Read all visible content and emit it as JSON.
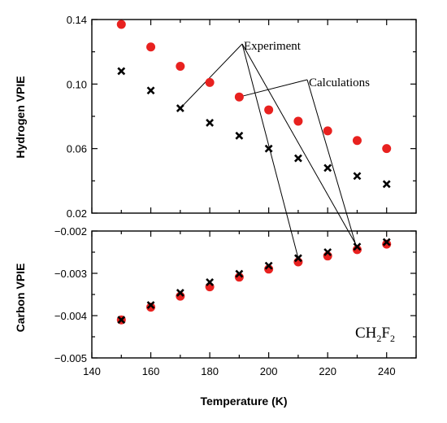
{
  "chart_data": [
    {
      "type": "scatter",
      "panel": "top",
      "ylabel": "Hydrogen VPIE",
      "ylim": [
        0.02,
        0.14
      ],
      "yticks": [
        0.02,
        0.06,
        0.1,
        0.14
      ],
      "ytick_labels": [
        "0.02",
        "0.06",
        "0.10",
        "0.14"
      ],
      "xlim": [
        140,
        250
      ],
      "series": [
        {
          "name": "Experiment",
          "marker": "x",
          "color": "#000000",
          "x": [
            150,
            160,
            170,
            180,
            190,
            200,
            210,
            220,
            230,
            240
          ],
          "y": [
            0.108,
            0.096,
            0.085,
            0.076,
            0.068,
            0.06,
            0.054,
            0.048,
            0.043,
            0.038
          ]
        },
        {
          "name": "Calculations",
          "marker": "circle",
          "color": "#e8211f",
          "x": [
            150,
            160,
            170,
            180,
            190,
            200,
            210,
            220,
            230,
            240
          ],
          "y": [
            0.137,
            0.123,
            0.111,
            0.101,
            0.092,
            0.084,
            0.077,
            0.071,
            0.065,
            0.06
          ]
        }
      ]
    },
    {
      "type": "scatter",
      "panel": "bottom",
      "ylabel": "Carbon VPIE",
      "xlabel": "Temperature (K)",
      "ylim": [
        -0.005,
        -0.002
      ],
      "yticks": [
        -0.005,
        -0.004,
        -0.003,
        -0.002
      ],
      "ytick_labels": [
        "−0.005",
        "−0.004",
        "−0.003",
        "−0.002"
      ],
      "xlim": [
        140,
        250
      ],
      "xticks": [
        140,
        160,
        180,
        200,
        220,
        240
      ],
      "xtick_labels": [
        "140",
        "160",
        "180",
        "200",
        "220",
        "240"
      ],
      "series": [
        {
          "name": "Experiment",
          "marker": "x",
          "color": "#000000",
          "x": [
            150,
            160,
            170,
            180,
            190,
            200,
            210,
            220,
            230,
            240
          ],
          "y": [
            -0.0041,
            -0.00375,
            -0.00346,
            -0.00321,
            -0.00301,
            -0.00282,
            -0.00264,
            -0.0025,
            -0.00237,
            -0.00226
          ]
        },
        {
          "name": "Calculations",
          "marker": "circle",
          "color": "#e8211f",
          "x": [
            150,
            160,
            170,
            180,
            190,
            200,
            210,
            220,
            230,
            240
          ],
          "y": [
            -0.0041,
            -0.0038,
            -0.00354,
            -0.00332,
            -0.00309,
            -0.0029,
            -0.00273,
            -0.00259,
            -0.00244,
            -0.00231
          ]
        }
      ]
    }
  ],
  "annotations": {
    "experiment_label": "Experiment",
    "calculations_label": "Calculations",
    "species_main": "CH",
    "species_sub1": "2",
    "species_f": "F",
    "species_sub2": "2"
  }
}
